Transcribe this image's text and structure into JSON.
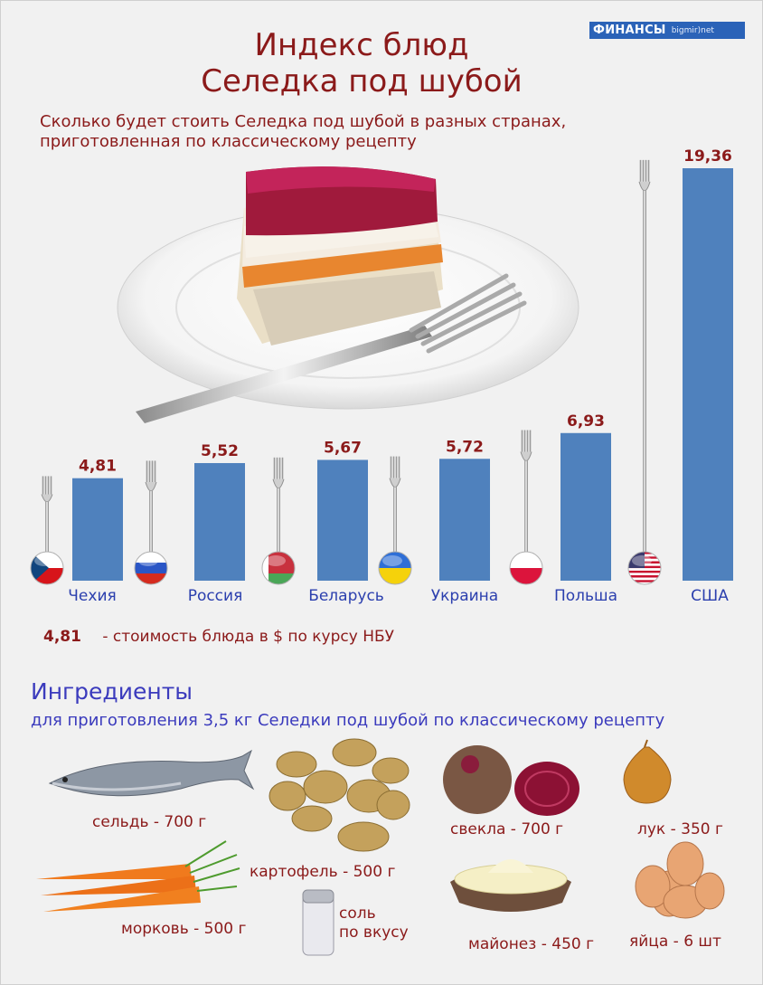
{
  "brand": {
    "logo_main": "ФИНАНСЫ",
    "logo_sub": "bigmir)net"
  },
  "title_line1": "Индекс блюд",
  "title_line2": "Селедка под шубой",
  "subtitle_line1": "Сколько будет стоить Селедка под шубой в разных странах,",
  "subtitle_line2": "приготовленная по классическому рецепту",
  "colors": {
    "bar": "#4f81bd",
    "value_label": "#8b1a1a",
    "country_label": "#2b3fae",
    "title": "#8b1a1a",
    "ingredients_heading": "#3b3bbd"
  },
  "chart_data": {
    "type": "bar",
    "categories": [
      "Чехия",
      "Россия",
      "Беларусь",
      "Украина",
      "Польша",
      "США"
    ],
    "values": [
      4.81,
      5.52,
      5.67,
      5.72,
      6.93,
      19.36
    ],
    "value_labels": [
      "4,81",
      "5,52",
      "5,67",
      "5,72",
      "6,93",
      "19,36"
    ],
    "flags": [
      "czech-flag-icon",
      "russia-flag-icon",
      "belarus-flag-icon",
      "ukraine-flag-icon",
      "poland-flag-icon",
      "usa-flag-icon"
    ],
    "title": "",
    "xlabel": "",
    "ylabel": ""
  },
  "legend": {
    "value": "4,81",
    "text": "- стоимость блюда в $ по курсу НБУ"
  },
  "ingredients": {
    "heading": "Ингредиенты",
    "subheading": "для приготовления 3,5 кг Селедки под шубой по классическому рецепту",
    "items": [
      {
        "label": "сельдь - 700 г",
        "icon": "herring-icon"
      },
      {
        "label": "картофель - 500 г",
        "icon": "potato-icon"
      },
      {
        "label": "свекла - 700 г",
        "icon": "beet-icon"
      },
      {
        "label": "лук - 350 г",
        "icon": "onion-icon"
      },
      {
        "label": "морковь - 500 г",
        "icon": "carrot-icon"
      },
      {
        "label": "соль",
        "label2": "по вкусу",
        "icon": "salt-shaker-icon"
      },
      {
        "label": "майонез - 450 г",
        "icon": "mayonnaise-icon"
      },
      {
        "label": "яйца - 6 шт",
        "icon": "egg-icon"
      }
    ]
  }
}
